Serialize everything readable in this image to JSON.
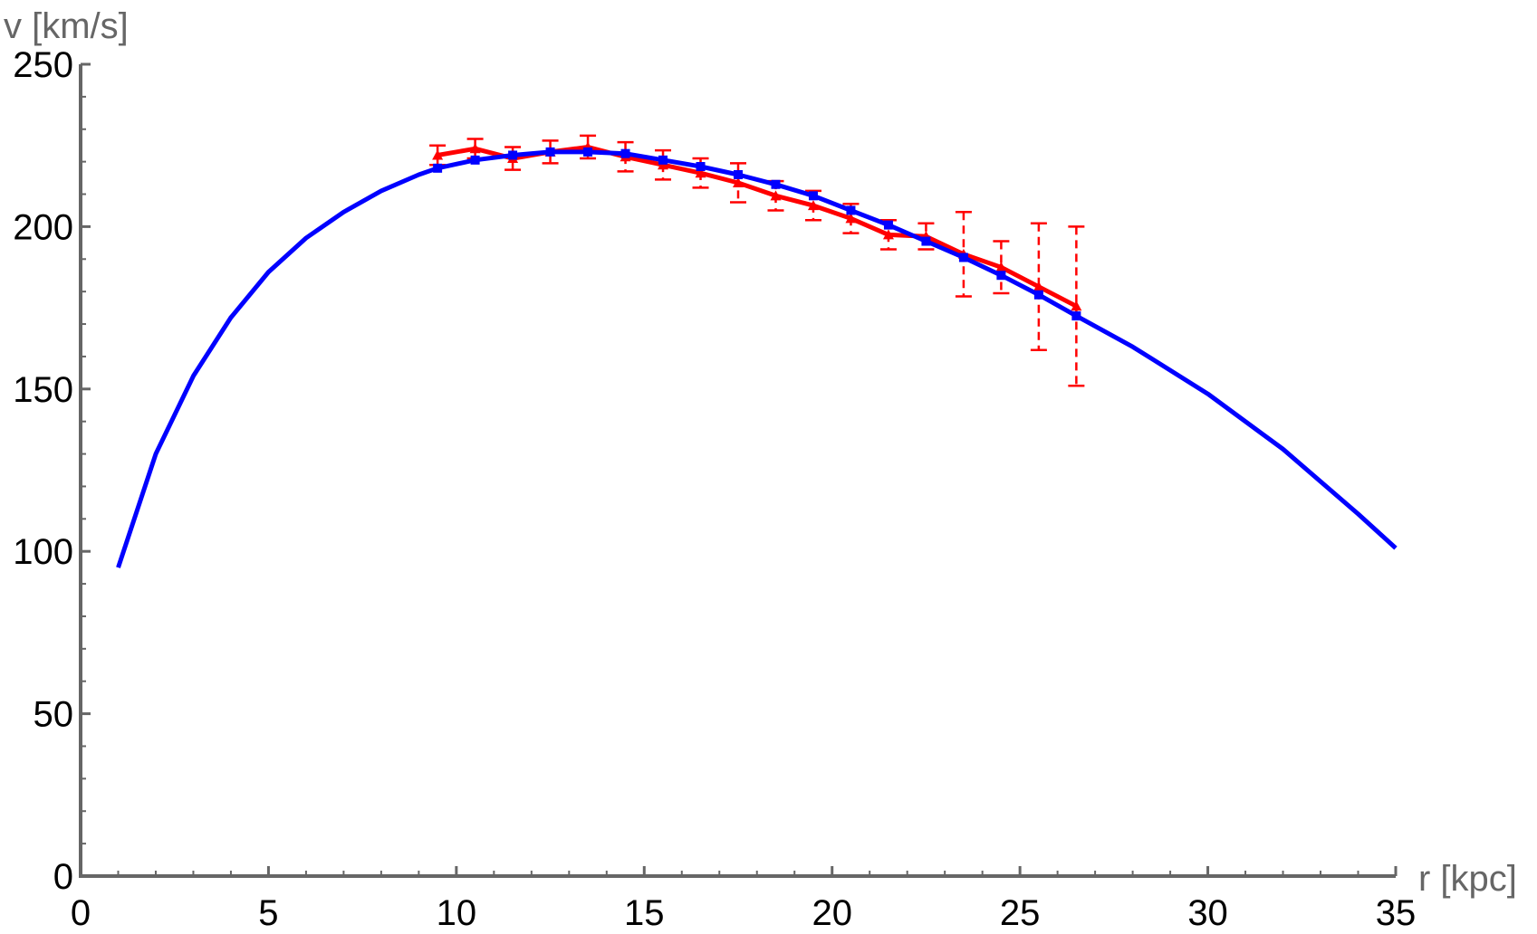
{
  "chart_data": {
    "type": "line",
    "xlabel": "r [kpc]",
    "ylabel": "v [km/s]",
    "xlim": [
      0,
      35
    ],
    "ylim": [
      0,
      250
    ],
    "x_ticks": [
      0,
      5,
      10,
      15,
      20,
      25,
      30,
      35
    ],
    "y_ticks": [
      0,
      50,
      100,
      150,
      200,
      250
    ],
    "grid": false,
    "legend": "none",
    "series": [
      {
        "color": "#ff0000",
        "marker": "triangle",
        "x": [
          9.5,
          10.5,
          11.5,
          12.5,
          13.5,
          14.5,
          15.5,
          16.5,
          17.5,
          18.5,
          19.5,
          20.5,
          21.5,
          22.5,
          23.5,
          24.5,
          25.5,
          26.5
        ],
        "y": [
          222,
          224,
          221,
          223,
          224.5,
          221.5,
          219,
          216.5,
          213.5,
          209.5,
          206.5,
          202.5,
          197.5,
          197,
          191.5,
          187.5,
          181.5,
          175.5
        ],
        "error": [
          3,
          3,
          3.5,
          3.5,
          3.5,
          4.5,
          4.5,
          4.5,
          6,
          4.5,
          4.5,
          4.5,
          4.5,
          4,
          13,
          8,
          19.5,
          24.5
        ]
      },
      {
        "color": "#0000ff",
        "marker": "square",
        "x": [
          1,
          2,
          3,
          4,
          5,
          6,
          7,
          8,
          9,
          9.5,
          10.5,
          11.5,
          12.5,
          13.5,
          14.5,
          15.5,
          16.5,
          17.5,
          18.5,
          19.5,
          20.5,
          21.5,
          22.5,
          23.5,
          24.5,
          25.5,
          26.5,
          28,
          30,
          32,
          34,
          35
        ],
        "y": [
          95,
          130,
          154,
          172,
          186,
          196.5,
          204.5,
          211,
          216,
          218,
          220.5,
          222,
          223,
          223,
          222.5,
          220.5,
          218.5,
          216,
          213,
          209.5,
          205,
          200.5,
          195.5,
          190.5,
          185,
          179,
          172.5,
          163,
          148.5,
          131.5,
          111.5,
          101
        ],
        "marker_x": [
          9.5,
          10.5,
          11.5,
          12.5,
          13.5,
          14.5,
          15.5,
          16.5,
          17.5,
          18.5,
          19.5,
          20.5,
          21.5,
          22.5,
          23.5,
          24.5,
          25.5,
          26.5
        ]
      }
    ]
  }
}
